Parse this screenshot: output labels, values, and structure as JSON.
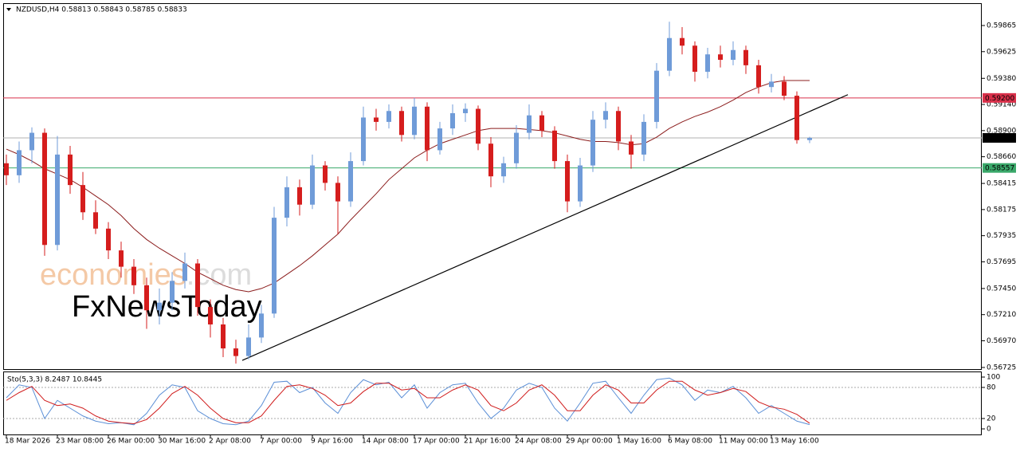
{
  "chart_data": {
    "type": "candlestick",
    "title": "NZDUSD,H4  0.58813 0.58843 0.58785 0.58833",
    "categories": [
      "18 Mar 2026",
      null,
      null,
      null,
      "23 Mar 08:00",
      null,
      null,
      null,
      "26 Mar 00:00",
      null,
      null,
      null,
      "30 Mar 16:00",
      null,
      null,
      null,
      "2 Apr 08:00",
      null,
      null,
      null,
      "7 Apr 00:00",
      null,
      null,
      null,
      "9 Apr 16:00",
      null,
      null,
      null,
      "14 Apr 08:00",
      null,
      null,
      null,
      "17 Apr 00:00",
      null,
      null,
      null,
      "21 Apr 16:00",
      null,
      null,
      null,
      "24 Apr 08:00",
      null,
      null,
      null,
      "29 Apr 00:00",
      null,
      null,
      null,
      "1 May 16:00",
      null,
      null,
      null,
      "6 May 08:00",
      null,
      null,
      null,
      "11 May 00:00",
      null,
      null,
      null,
      "13 May 16:00",
      null,
      null,
      null
    ],
    "candles": [
      [
        0.586,
        0.5868,
        0.584,
        0.5849
      ],
      [
        0.5849,
        0.588,
        0.5842,
        0.5872
      ],
      [
        0.5872,
        0.5893,
        0.586,
        0.5888
      ],
      [
        0.5888,
        0.5892,
        0.5775,
        0.5785
      ],
      [
        0.5785,
        0.5885,
        0.578,
        0.5868
      ],
      [
        0.5868,
        0.5876,
        0.5832,
        0.584
      ],
      [
        0.584,
        0.5852,
        0.5808,
        0.5815
      ],
      [
        0.5815,
        0.5826,
        0.5795,
        0.58
      ],
      [
        0.58,
        0.5806,
        0.5772,
        0.578
      ],
      [
        0.578,
        0.5788,
        0.5755,
        0.5765
      ],
      [
        0.5765,
        0.5772,
        0.574,
        0.5748
      ],
      [
        0.5748,
        0.5755,
        0.5708,
        0.5725
      ],
      [
        0.5725,
        0.5745,
        0.5712,
        0.5732
      ],
      [
        0.5732,
        0.576,
        0.5725,
        0.5752
      ],
      [
        0.5752,
        0.5778,
        0.5745,
        0.5768
      ],
      [
        0.5768,
        0.5772,
        0.572,
        0.5728
      ],
      [
        0.5728,
        0.5735,
        0.57,
        0.5712
      ],
      [
        0.5712,
        0.5718,
        0.5682,
        0.569
      ],
      [
        0.569,
        0.5698,
        0.5676,
        0.5683
      ],
      [
        0.5683,
        0.5712,
        0.568,
        0.57
      ],
      [
        0.57,
        0.573,
        0.5695,
        0.5722
      ],
      [
        0.5722,
        0.582,
        0.5718,
        0.581
      ],
      [
        0.581,
        0.5848,
        0.5802,
        0.5838
      ],
      [
        0.5838,
        0.5845,
        0.5812,
        0.5822
      ],
      [
        0.5822,
        0.5868,
        0.5818,
        0.5858
      ],
      [
        0.5858,
        0.5862,
        0.5835,
        0.5842
      ],
      [
        0.5842,
        0.5848,
        0.5795,
        0.5825
      ],
      [
        0.5825,
        0.587,
        0.582,
        0.5862
      ],
      [
        0.5862,
        0.5912,
        0.5858,
        0.5902
      ],
      [
        0.5902,
        0.591,
        0.589,
        0.5898
      ],
      [
        0.5898,
        0.5914,
        0.5892,
        0.5908
      ],
      [
        0.5908,
        0.5912,
        0.588,
        0.5886
      ],
      [
        0.5886,
        0.592,
        0.5882,
        0.5912
      ],
      [
        0.5912,
        0.5916,
        0.5862,
        0.5872
      ],
      [
        0.5872,
        0.5898,
        0.5868,
        0.5892
      ],
      [
        0.5892,
        0.5914,
        0.5886,
        0.5906
      ],
      [
        0.5906,
        0.5915,
        0.5898,
        0.591
      ],
      [
        0.591,
        0.5913,
        0.5872,
        0.5878
      ],
      [
        0.5878,
        0.5884,
        0.5838,
        0.5848
      ],
      [
        0.5848,
        0.5866,
        0.5842,
        0.586
      ],
      [
        0.586,
        0.5895,
        0.5855,
        0.5888
      ],
      [
        0.5888,
        0.5914,
        0.5882,
        0.5904
      ],
      [
        0.5904,
        0.5908,
        0.5884,
        0.589
      ],
      [
        0.589,
        0.5894,
        0.5855,
        0.5862
      ],
      [
        0.5862,
        0.5868,
        0.5815,
        0.5825
      ],
      [
        0.5825,
        0.5865,
        0.582,
        0.5858
      ],
      [
        0.5858,
        0.5908,
        0.5852,
        0.59
      ],
      [
        0.59,
        0.5916,
        0.5892,
        0.5908
      ],
      [
        0.5908,
        0.5912,
        0.5872,
        0.588
      ],
      [
        0.588,
        0.5886,
        0.5855,
        0.5868
      ],
      [
        0.5868,
        0.5905,
        0.5862,
        0.5898
      ],
      [
        0.5898,
        0.5952,
        0.5892,
        0.5945
      ],
      [
        0.5945,
        0.599,
        0.594,
        0.5975
      ],
      [
        0.5975,
        0.5985,
        0.596,
        0.5968
      ],
      [
        0.5968,
        0.5972,
        0.5935,
        0.5944
      ],
      [
        0.5944,
        0.5966,
        0.5938,
        0.596
      ],
      [
        0.596,
        0.5968,
        0.5948,
        0.5955
      ],
      [
        0.5955,
        0.5972,
        0.595,
        0.5964
      ],
      [
        0.5964,
        0.5968,
        0.5942,
        0.595
      ],
      [
        0.595,
        0.5955,
        0.5924,
        0.593
      ],
      [
        0.593,
        0.5942,
        0.5925,
        0.5935
      ],
      [
        0.5935,
        0.594,
        0.5918,
        0.5922
      ],
      [
        0.5922,
        0.5926,
        0.5878,
        0.58813
      ],
      [
        0.58813,
        0.58843,
        0.58785,
        0.58833
      ]
    ],
    "up_color": "#6f9bd8",
    "down_color": "#d51d1d",
    "ma": {
      "color": "#8b1c1c",
      "values": [
        0.5873,
        0.5868,
        0.5862,
        0.5855,
        0.585,
        0.5845,
        0.5838,
        0.583,
        0.5822,
        0.5812,
        0.58,
        0.579,
        0.5782,
        0.5775,
        0.5768,
        0.576,
        0.5754,
        0.5748,
        0.5744,
        0.5742,
        0.5745,
        0.575,
        0.5758,
        0.5766,
        0.5775,
        0.5785,
        0.5795,
        0.5808,
        0.582,
        0.5832,
        0.5845,
        0.5855,
        0.5865,
        0.5872,
        0.5878,
        0.5882,
        0.5886,
        0.589,
        0.5892,
        0.5892,
        0.5892,
        0.5891,
        0.589,
        0.5888,
        0.5885,
        0.5882,
        0.588,
        0.588,
        0.5879,
        0.5877,
        0.5878,
        0.5884,
        0.5892,
        0.5898,
        0.5903,
        0.5907,
        0.5912,
        0.5918,
        0.5925,
        0.593,
        0.5934,
        0.5936,
        0.5936,
        0.5936
      ]
    },
    "levels": [
      {
        "value": 0.592,
        "label": "0.59200",
        "color": "#d9304a"
      },
      {
        "value": 0.58833,
        "color": "#000000"
      },
      {
        "value": 0.58557,
        "color": "#3aa86a"
      }
    ],
    "trendline": {
      "from": [
        18.5,
        0.5679
      ],
      "to": [
        66,
        0.5923
      ],
      "color": "#000000"
    },
    "ylim": [
      0.5671,
      0.6007
    ],
    "yticks": [
      0.59865,
      0.59625,
      {
        "value": 0.5938,
        "label": "0.59380"
      },
      {
        "value": 0.5914,
        "label": "0.59140"
      },
      {
        "value": 0.589,
        "label": "0.58900"
      },
      {
        "value": 0.5866,
        "label": "0.58660"
      },
      0.58415,
      0.58175,
      0.57935,
      0.57695,
      {
        "value": 0.5745,
        "label": "0.57450"
      },
      {
        "value": 0.5721,
        "label": "0.57210"
      },
      {
        "value": 0.5697,
        "label": "0.56970"
      },
      0.56725
    ],
    "watermark": {
      "brand": "economies",
      "suffix": ".com",
      "sub": "FxNewsToday"
    },
    "oscillator": {
      "label": "Sto(5,3,3) 8.2487 10.8445",
      "ylim": [
        0,
        100
      ],
      "yticks": [
        100,
        80,
        20,
        0
      ],
      "levels": [
        80,
        20
      ],
      "series": [
        {
          "name": "main",
          "color": "#5b8fd6",
          "values": [
            60,
            85,
            80,
            20,
            55,
            40,
            25,
            15,
            10,
            12,
            8,
            30,
            65,
            85,
            80,
            35,
            20,
            10,
            8,
            15,
            45,
            90,
            92,
            70,
            80,
            50,
            30,
            70,
            95,
            85,
            90,
            60,
            85,
            40,
            70,
            85,
            88,
            50,
            20,
            40,
            75,
            88,
            80,
            40,
            15,
            50,
            88,
            92,
            60,
            30,
            65,
            95,
            98,
            85,
            55,
            75,
            70,
            82,
            60,
            30,
            45,
            30,
            15,
            8.2487
          ]
        },
        {
          "name": "signal",
          "color": "#d01c1c",
          "values": [
            55,
            70,
            82,
            55,
            45,
            48,
            40,
            25,
            15,
            12,
            10,
            18,
            40,
            68,
            82,
            65,
            40,
            20,
            12,
            12,
            25,
            55,
            82,
            85,
            78,
            65,
            45,
            50,
            72,
            88,
            88,
            75,
            78,
            60,
            60,
            75,
            85,
            75,
            45,
            35,
            50,
            75,
            85,
            65,
            35,
            35,
            65,
            85,
            75,
            50,
            50,
            75,
            92,
            92,
            75,
            65,
            70,
            78,
            72,
            52,
            42,
            38,
            28,
            10.8445
          ]
        }
      ]
    }
  }
}
